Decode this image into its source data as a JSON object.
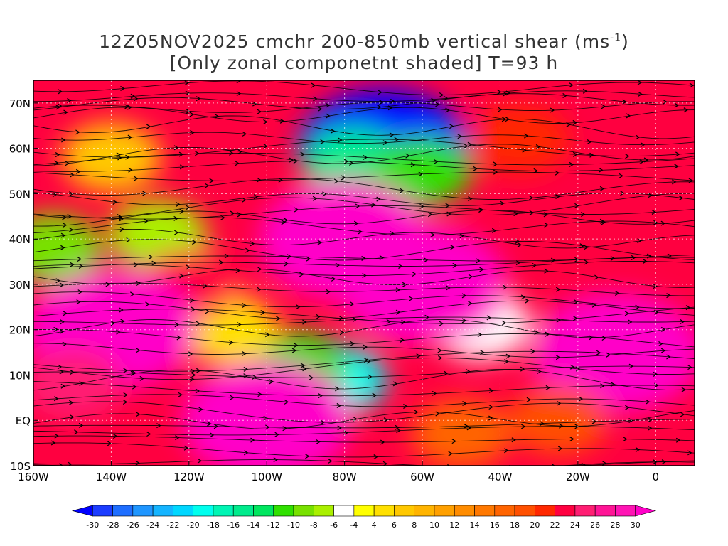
{
  "title": {
    "line1_main": "12Z05NOV2025 cmchr 200-850mb vertical shear (ms",
    "line1_unit_sup": "-1",
    "line1_close": ")",
    "line2": "[Only zonal componetnt shaded] T=93 h"
  },
  "map": {
    "lon_min": -160,
    "lon_max": 10,
    "lat_min": -10,
    "lat_max": 75,
    "lon_ticks": [
      {
        "value": -160,
        "label": "160W"
      },
      {
        "value": -140,
        "label": "140W"
      },
      {
        "value": -120,
        "label": "120W"
      },
      {
        "value": -100,
        "label": "100W"
      },
      {
        "value": -80,
        "label": "80W"
      },
      {
        "value": -60,
        "label": "60W"
      },
      {
        "value": -40,
        "label": "40W"
      },
      {
        "value": -20,
        "label": "20W"
      },
      {
        "value": 0,
        "label": "0"
      }
    ],
    "lat_ticks": [
      {
        "value": -10,
        "label": "10S"
      },
      {
        "value": 0,
        "label": "EQ"
      },
      {
        "value": 10,
        "label": "10N"
      },
      {
        "value": 20,
        "label": "20N"
      },
      {
        "value": 30,
        "label": "30N"
      },
      {
        "value": 40,
        "label": "40N"
      },
      {
        "value": 50,
        "label": "50N"
      },
      {
        "value": 60,
        "label": "60N"
      },
      {
        "value": 70,
        "label": "70N"
      }
    ],
    "shear_features": [
      {
        "lon": -70,
        "lat": 60,
        "value": -30
      },
      {
        "lon": -78,
        "lat": 57,
        "value": -16
      },
      {
        "lon": -60,
        "lat": 55,
        "value": -12
      },
      {
        "lon": -155,
        "lat": 38,
        "value": -10
      },
      {
        "lon": -128,
        "lat": 41,
        "value": -8
      },
      {
        "lon": -82,
        "lat": 9,
        "value": -20
      },
      {
        "lon": -92,
        "lat": 12,
        "value": -12
      },
      {
        "lon": -45,
        "lat": 21,
        "value": -6
      },
      {
        "lon": -140,
        "lat": 58,
        "value": 6
      },
      {
        "lon": -110,
        "lat": 20,
        "value": 4
      },
      {
        "lon": -35,
        "lat": 62,
        "value": 20
      },
      {
        "lon": -120,
        "lat": 30,
        "value": 22
      },
      {
        "lon": -80,
        "lat": 40,
        "value": 30
      },
      {
        "lon": -140,
        "lat": 20,
        "value": 30
      },
      {
        "lon": -150,
        "lat": 8,
        "value": 24
      },
      {
        "lon": -60,
        "lat": 30,
        "value": 30
      },
      {
        "lon": -10,
        "lat": 15,
        "value": 30
      },
      {
        "lon": -50,
        "lat": -3,
        "value": 16
      },
      {
        "lon": -25,
        "lat": 0,
        "value": 18
      },
      {
        "lon": -100,
        "lat": 0,
        "value": 30
      }
    ]
  },
  "colorbar": {
    "labels": [
      "-30",
      "-28",
      "-26",
      "-24",
      "-22",
      "-20",
      "-18",
      "-16",
      "-14",
      "-12",
      "-10",
      "-8",
      "-6",
      "-4",
      "4",
      "6",
      "8",
      "10",
      "12",
      "14",
      "16",
      "18",
      "20",
      "22",
      "24",
      "26",
      "28",
      "30"
    ],
    "colors": [
      "#0000ff",
      "#1b3cff",
      "#1e6eff",
      "#1f96ff",
      "#14b4ff",
      "#00d7ff",
      "#00ffee",
      "#00f5b4",
      "#00eb8c",
      "#00e65f",
      "#30e000",
      "#78e100",
      "#aaf000",
      "#ffffff",
      "#ffff00",
      "#ffe000",
      "#ffc800",
      "#ffb400",
      "#ffa000",
      "#ff8c00",
      "#ff7800",
      "#ff6400",
      "#ff5000",
      "#ff2800",
      "#ff0040",
      "#ff1e73",
      "#ff1496",
      "#ff14b4",
      "#ff00c8"
    ]
  }
}
